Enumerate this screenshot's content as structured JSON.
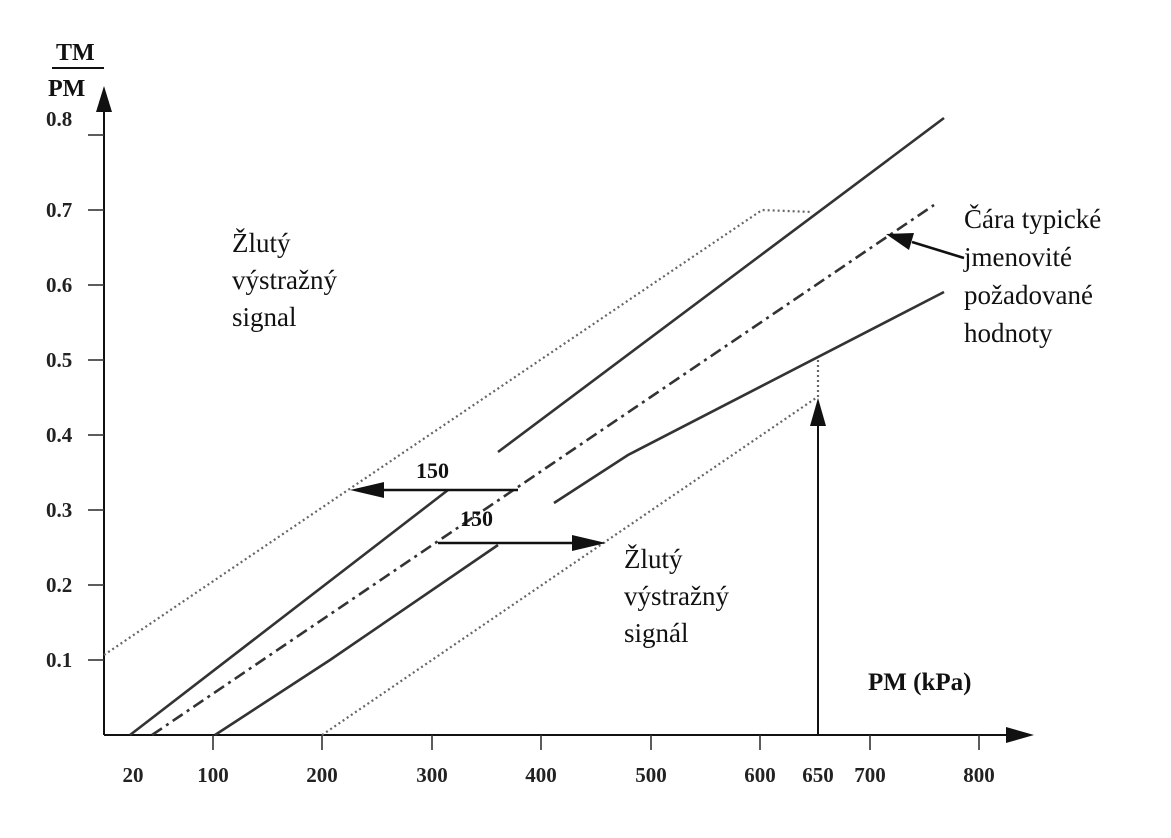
{
  "axes": {
    "y_label_top": "TM",
    "y_label_bottom": "PM",
    "x_label": "PM (kPa)",
    "y_ticks": [
      "0.1",
      "0.2",
      "0.3",
      "0.4",
      "0.5",
      "0.6",
      "0.7",
      "0.8"
    ],
    "x_ticks": [
      "20",
      "100",
      "200",
      "300",
      "400",
      "500",
      "600",
      "650",
      "700",
      "800"
    ]
  },
  "annotations": {
    "upper_region": [
      "Žlutý",
      "výstražný",
      "signal"
    ],
    "lower_region": [
      "Žlutý",
      "výstražný",
      "signál"
    ],
    "nominal_line": [
      "Čára typické",
      "jmenovité",
      "požadované",
      "hodnoty"
    ],
    "offset_upper": "150",
    "offset_lower": "150"
  }
}
